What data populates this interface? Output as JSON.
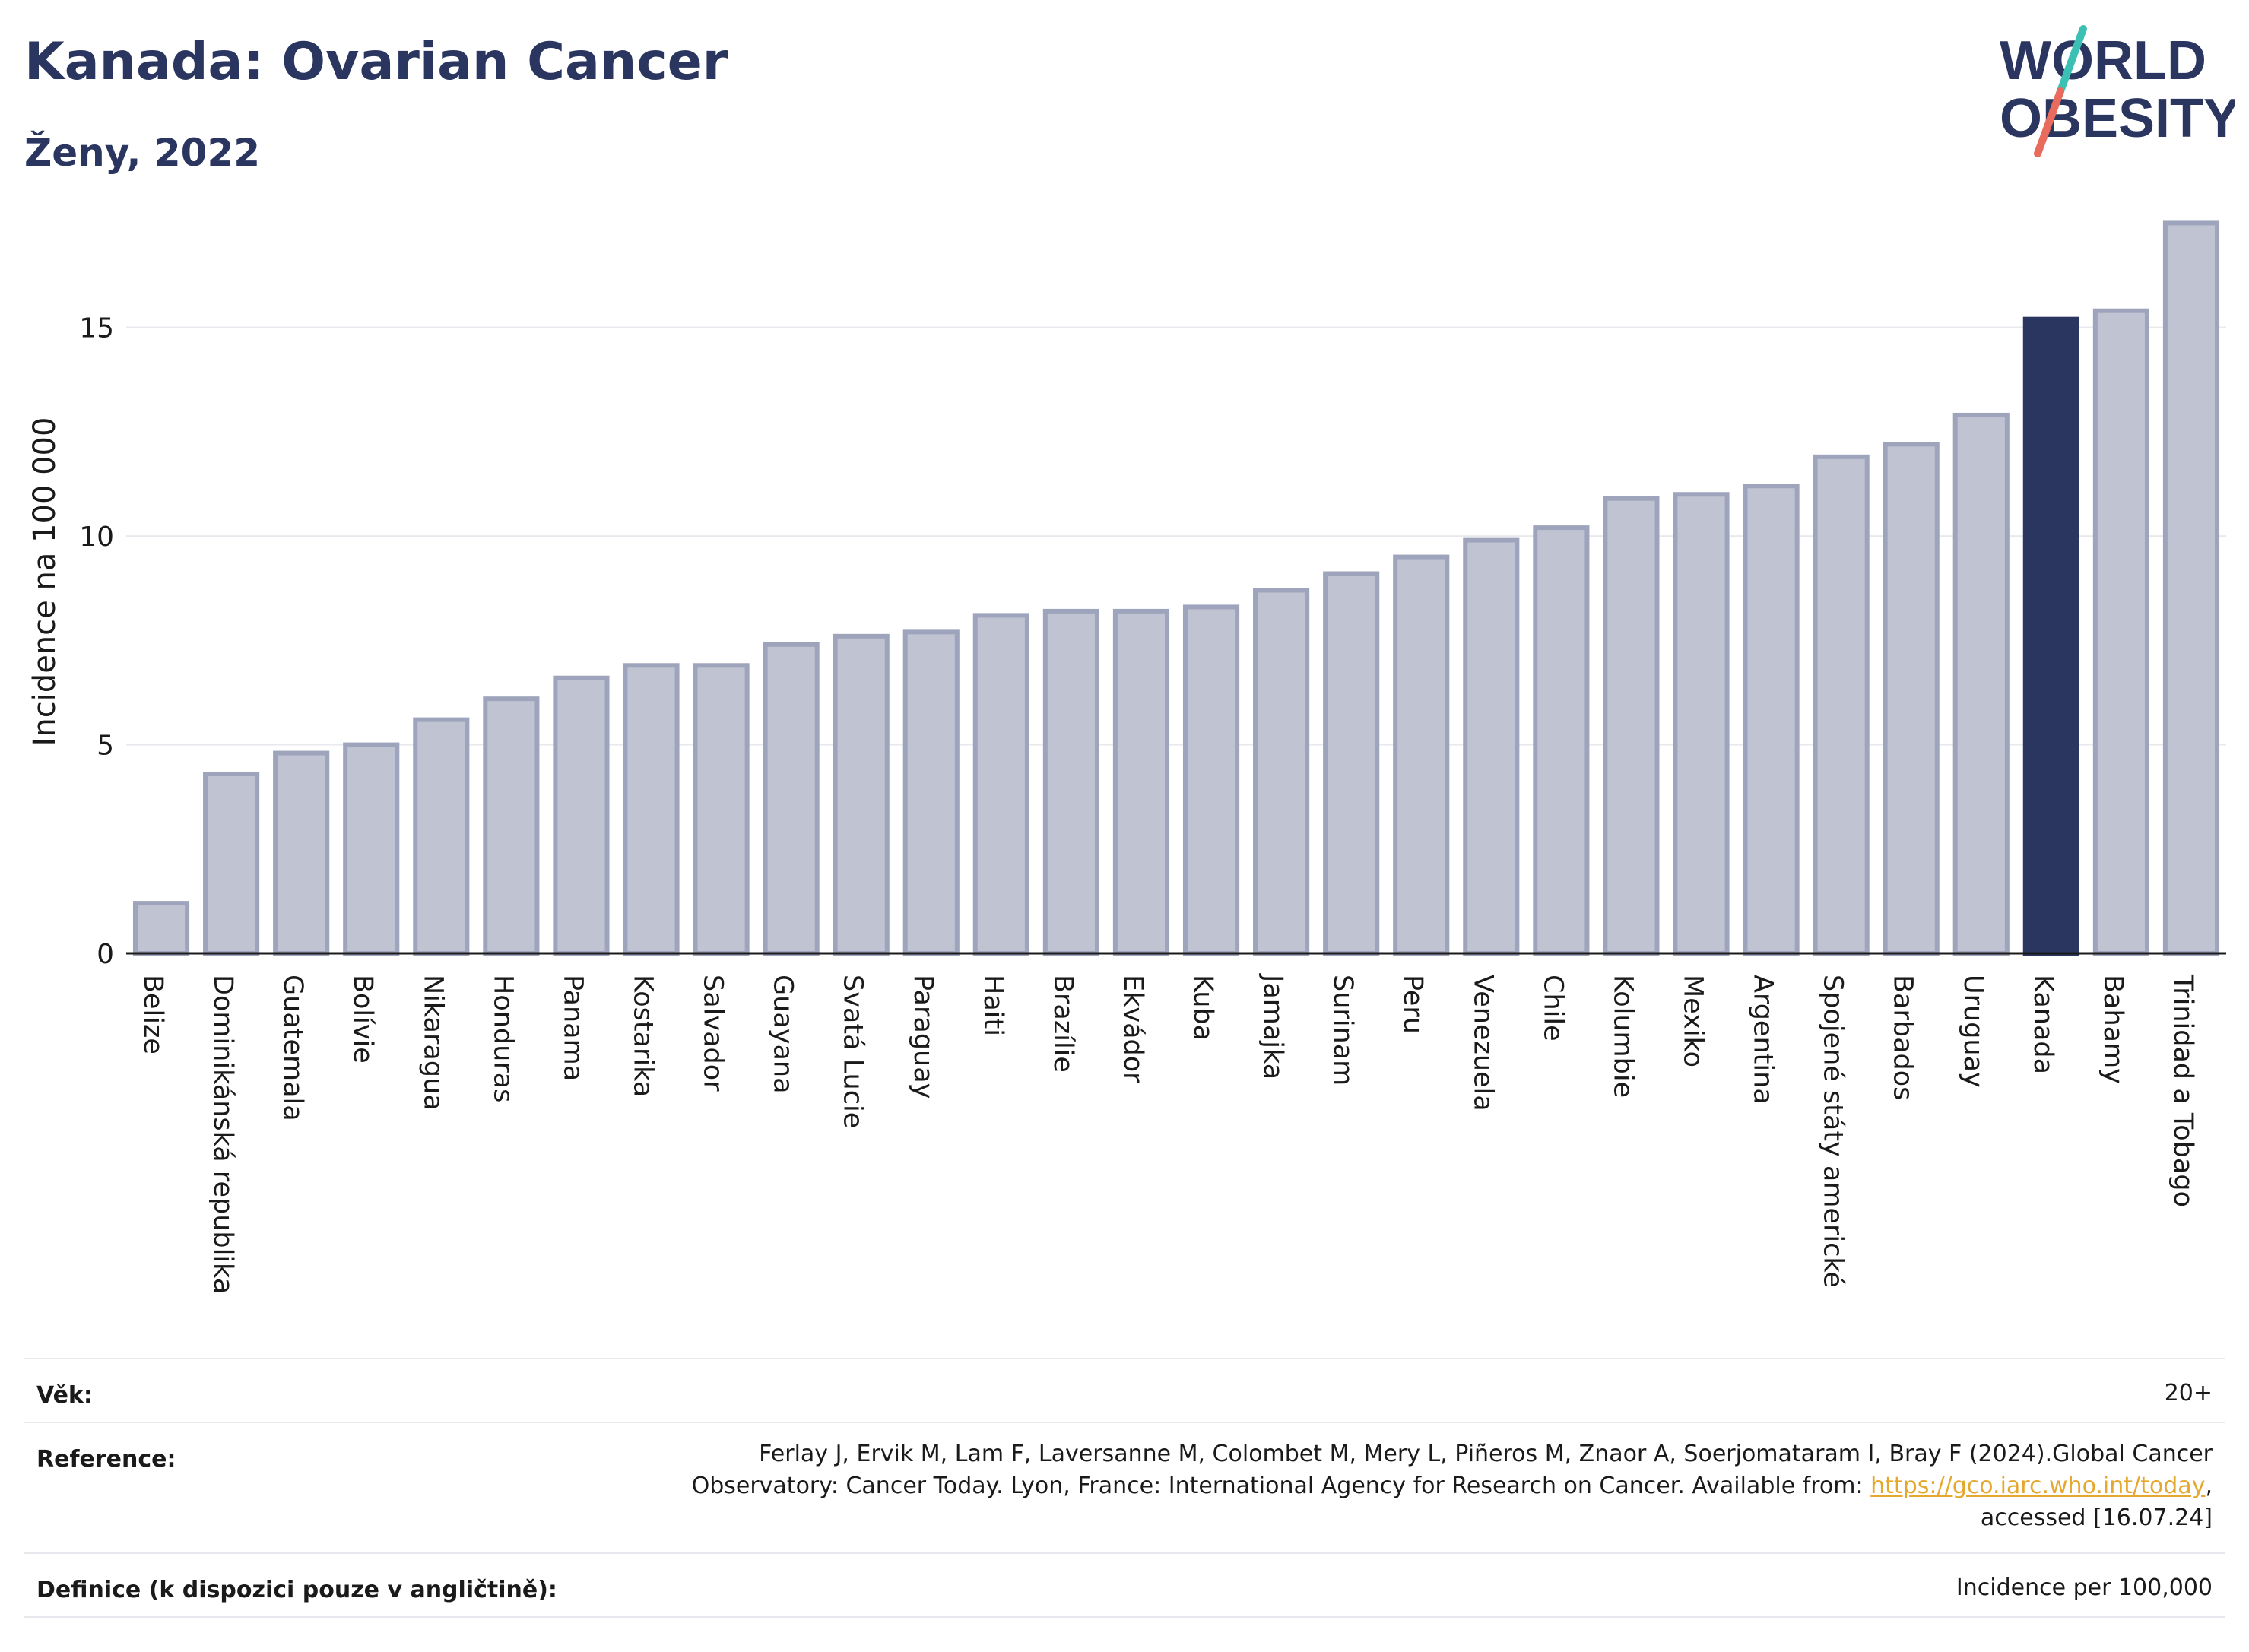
{
  "header": {
    "title": "Kanada: Ovarian Cancer",
    "subtitle": "Ženy, 2022",
    "logo_line1": "WORLD",
    "logo_line2": "OBESITY"
  },
  "colors": {
    "bar": "#c0c4d2",
    "bar_stroke": "#9ea4bb",
    "highlight": "#2b3660",
    "grid": "#e8e9ee",
    "axis_text": "#1a1a1a",
    "logo_teal": "#3cc0b4",
    "logo_coral": "#e86b5e",
    "link": "#e5a82e"
  },
  "chart_data": {
    "type": "bar",
    "ylabel": "Incidence na 100 000",
    "ylim": [
      0,
      18
    ],
    "yticks": [
      0,
      5,
      10,
      15
    ],
    "grid": true,
    "highlight_category": "Kanada",
    "categories": [
      "Belize",
      "Dominikánská republika",
      "Guatemala",
      "Bolívie",
      "Nikaragua",
      "Honduras",
      "Panama",
      "Kostarika",
      "Salvador",
      "Guayana",
      "Svatá Lucie",
      "Paraguay",
      "Haiti",
      "Brazílie",
      "Ekvádor",
      "Kuba",
      "Jamajka",
      "Surinam",
      "Peru",
      "Venezuela",
      "Chile",
      "Kolumbie",
      "Mexiko",
      "Argentina",
      "Spojené státy americké",
      "Barbados",
      "Uruguay",
      "Kanada",
      "Bahamy",
      "Trinidad a Tobago"
    ],
    "values": [
      1.2,
      4.3,
      4.8,
      5.0,
      5.6,
      6.1,
      6.6,
      6.9,
      6.9,
      7.4,
      7.6,
      7.7,
      8.1,
      8.2,
      8.2,
      8.3,
      8.7,
      9.1,
      9.5,
      9.9,
      10.2,
      10.9,
      11.0,
      11.2,
      11.9,
      12.2,
      12.9,
      15.2,
      15.4,
      17.5
    ]
  },
  "info": {
    "age_label": "Věk:",
    "age_value": "20+",
    "reference_label": "Reference:",
    "reference_text_1": "Ferlay J, Ervik M, Lam F, Laversanne M, Colombet M, Mery L, Piñeros M, Znaor A, Soerjomataram I, Bray F (2024).Global Cancer",
    "reference_text_2": "Observatory: Cancer Today. Lyon, France: International Agency for Research on Cancer. Available from:",
    "reference_link": "https://gco.iarc.who.int/today",
    "reference_text_3": "accessed [16.07.24]",
    "definition_label": "Definice (k dispozici pouze v angličtině):",
    "definition_value": "Incidence per 100,000"
  }
}
